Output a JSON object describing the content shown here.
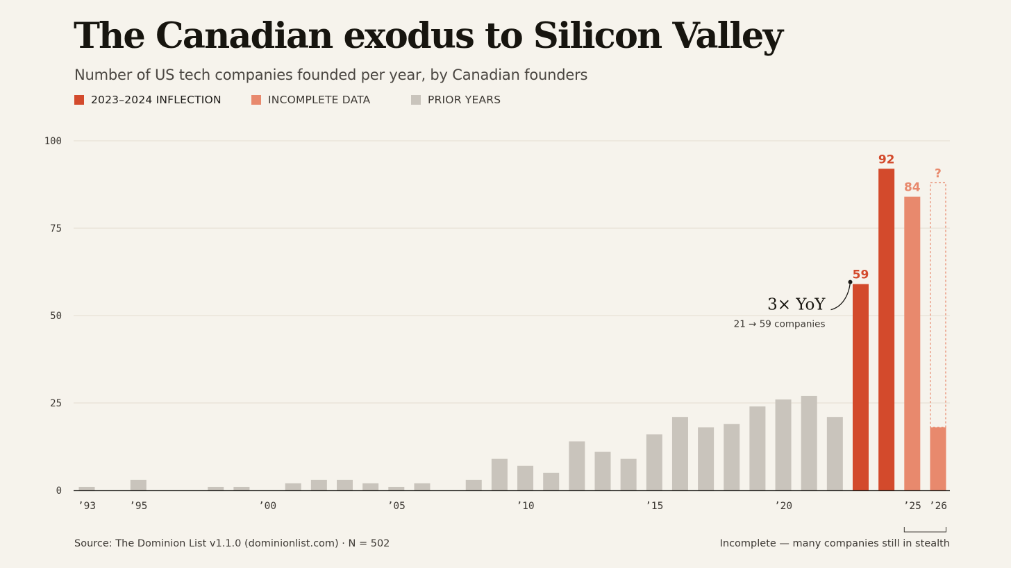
{
  "header": {
    "title": "The Canadian exodus to Silicon Valley",
    "subtitle": "Number of US tech companies founded per year, by Canadian founders"
  },
  "legend": [
    {
      "label": "2023–2024 INFLECTION",
      "color": "#d34a2c"
    },
    {
      "label": "INCOMPLETE DATA",
      "color": "#e8896d"
    },
    {
      "label": "PRIOR YEARS",
      "color": "#c9c4bc"
    }
  ],
  "colors": {
    "inflection": "#d34a2c",
    "incomplete": "#e8896d",
    "prior": "#c9c4bc",
    "grid": "#e4ddd1",
    "axis": "#1c1a17"
  },
  "chart_data": {
    "type": "bar",
    "ylim": [
      0,
      100
    ],
    "y_ticks": [
      0,
      25,
      50,
      75,
      100
    ],
    "grid": true,
    "legend_position": "top-left",
    "categories": [
      1993,
      1994,
      1995,
      1996,
      1997,
      1998,
      1999,
      2000,
      2001,
      2002,
      2003,
      2004,
      2005,
      2006,
      2007,
      2008,
      2009,
      2010,
      2011,
      2012,
      2013,
      2014,
      2015,
      2016,
      2017,
      2018,
      2019,
      2020,
      2021,
      2022,
      2023,
      2024,
      2025,
      2026
    ],
    "values": [
      1,
      0,
      3,
      0,
      0,
      1,
      1,
      0,
      2,
      3,
      3,
      2,
      1,
      2,
      0,
      3,
      9,
      7,
      5,
      14,
      11,
      9,
      16,
      21,
      18,
      19,
      24,
      26,
      27,
      21,
      59,
      92,
      84,
      18
    ],
    "series_group": [
      "prior",
      "prior",
      "prior",
      "prior",
      "prior",
      "prior",
      "prior",
      "prior",
      "prior",
      "prior",
      "prior",
      "prior",
      "prior",
      "prior",
      "prior",
      "prior",
      "prior",
      "prior",
      "prior",
      "prior",
      "prior",
      "prior",
      "prior",
      "prior",
      "prior",
      "prior",
      "prior",
      "prior",
      "prior",
      "prior",
      "inflection",
      "inflection",
      "incomplete",
      "incomplete"
    ],
    "value_labels": [
      {
        "year": 2023,
        "text": "59"
      },
      {
        "year": 2024,
        "text": "92"
      },
      {
        "year": 2025,
        "text": "84"
      },
      {
        "year": 2026,
        "text": "?"
      }
    ],
    "projection_outline": {
      "year": 2026,
      "value": 88
    },
    "x_tick_labels": [
      {
        "year": 1993,
        "label": "’93"
      },
      {
        "year": 1995,
        "label": "’95"
      },
      {
        "year": 2000,
        "label": "’00"
      },
      {
        "year": 2005,
        "label": "’05"
      },
      {
        "year": 2010,
        "label": "’10"
      },
      {
        "year": 2015,
        "label": "’15"
      },
      {
        "year": 2020,
        "label": "’20"
      },
      {
        "year": 2025,
        "label": "’25"
      },
      {
        "year": 2026,
        "label": "’26"
      }
    ],
    "annotation": {
      "year": 2023,
      "value": 60,
      "title": "3× YoY",
      "subtitle": "21 → 59 companies"
    }
  },
  "footer": {
    "source": "Source: The Dominion List v1.1.0 (dominionlist.com) · N = 502",
    "note": "Incomplete — many companies still in stealth"
  }
}
